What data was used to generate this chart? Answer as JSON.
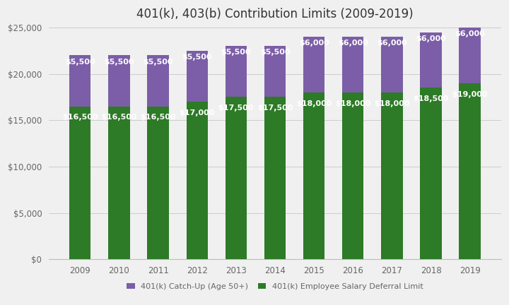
{
  "title": "401(k), 403(b) Contribution Limits (2009-2019)",
  "years": [
    2009,
    2010,
    2011,
    2012,
    2013,
    2014,
    2015,
    2016,
    2017,
    2018,
    2019
  ],
  "deferral": [
    16500,
    16500,
    16500,
    17000,
    17500,
    17500,
    18000,
    18000,
    18000,
    18500,
    19000
  ],
  "catchup": [
    5500,
    5500,
    5500,
    5500,
    5500,
    5500,
    6000,
    6000,
    6000,
    6000,
    6000
  ],
  "deferral_color": "#2d7a27",
  "catchup_color": "#7b5ea7",
  "background_color": "#f0f0f0",
  "text_color": "#666666",
  "label_text_color": "#ffffff",
  "ylim": [
    0,
    25000
  ],
  "yticks": [
    0,
    5000,
    10000,
    15000,
    20000,
    25000
  ],
  "legend_labels": [
    "401(k) Catch-Up (Age 50+)",
    "401(k) Employee Salary Deferral Limit"
  ],
  "bar_width": 0.55,
  "title_fontsize": 12,
  "tick_fontsize": 8.5,
  "deferral_label_fontsize": 8,
  "catchup_label_fontsize": 8,
  "legend_fontsize": 8
}
